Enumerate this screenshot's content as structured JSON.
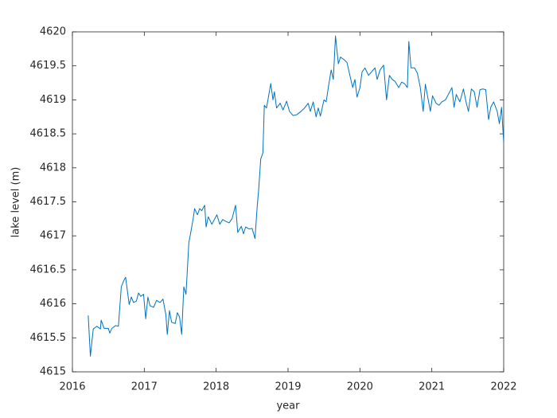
{
  "chart_data": {
    "type": "line",
    "xlabel": "year",
    "ylabel": "lake level (m)",
    "xlim": [
      2016,
      2022
    ],
    "xticks": [
      2016,
      2017,
      2018,
      2019,
      2020,
      2021,
      2022
    ],
    "ylim": [
      4615,
      4620
    ],
    "yticks": [
      4615,
      4615.5,
      4616,
      4616.5,
      4617,
      4617.5,
      4618,
      4618.5,
      4619,
      4619.5,
      4620
    ],
    "grid": false,
    "series": [
      {
        "name": "lake level",
        "color": "#0072bd",
        "x": [
          2016.22,
          2016.25,
          2016.29,
          2016.34,
          2016.39,
          2016.4,
          2016.44,
          2016.5,
          2016.52,
          2016.55,
          2016.6,
          2016.64,
          2016.68,
          2016.71,
          2016.74,
          2016.79,
          2016.82,
          2016.85,
          2016.89,
          2016.92,
          2016.95,
          2016.99,
          2017.02,
          2017.05,
          2017.08,
          2017.13,
          2017.17,
          2017.22,
          2017.26,
          2017.3,
          2017.32,
          2017.35,
          2017.38,
          2017.43,
          2017.46,
          2017.49,
          2017.52,
          2017.55,
          2017.58,
          2017.62,
          2017.65,
          2017.68,
          2017.7,
          2017.74,
          2017.77,
          2017.8,
          2017.84,
          2017.86,
          2017.89,
          2017.94,
          2017.98,
          2018.01,
          2018.05,
          2018.09,
          2018.14,
          2018.18,
          2018.22,
          2018.27,
          2018.3,
          2018.35,
          2018.38,
          2018.41,
          2018.46,
          2018.5,
          2018.54,
          2018.57,
          2018.59,
          2018.62,
          2018.65,
          2018.67,
          2018.7,
          2018.73,
          2018.76,
          2018.79,
          2018.81,
          2018.84,
          2018.89,
          2018.93,
          2018.98,
          2019.02,
          2019.07,
          2019.12,
          2019.18,
          2019.23,
          2019.28,
          2019.31,
          2019.35,
          2019.39,
          2019.42,
          2019.45,
          2019.5,
          2019.53,
          2019.56,
          2019.6,
          2019.63,
          2019.66,
          2019.7,
          2019.73,
          2019.78,
          2019.82,
          2019.86,
          2019.9,
          2019.93,
          2019.96,
          2020.0,
          2020.03,
          2020.07,
          2020.12,
          2020.16,
          2020.21,
          2020.24,
          2020.28,
          2020.33,
          2020.37,
          2020.41,
          2020.45,
          2020.49,
          2020.54,
          2020.58,
          2020.62,
          2020.66,
          2020.68,
          2020.71,
          2020.76,
          2020.8,
          2020.84,
          2020.88,
          2020.91,
          2020.94,
          2020.98,
          2021.01,
          2021.06,
          2021.1,
          2021.14,
          2021.19,
          2021.23,
          2021.28,
          2021.31,
          2021.34,
          2021.39,
          2021.44,
          2021.48,
          2021.51,
          2021.55,
          2021.59,
          2021.63,
          2021.67,
          2021.71,
          2021.75,
          2021.79,
          2021.82,
          2021.86,
          2021.91,
          2021.94,
          2021.97,
          2022.0
        ],
        "values": [
          4615.83,
          4615.23,
          4615.63,
          4615.67,
          4615.63,
          4615.76,
          4615.64,
          4615.64,
          4615.57,
          4615.64,
          4615.68,
          4615.67,
          4616.25,
          4616.33,
          4616.39,
          4615.99,
          4616.1,
          4616.02,
          4616.04,
          4616.16,
          4616.11,
          4616.14,
          4615.78,
          4616.1,
          4615.97,
          4615.95,
          4616.05,
          4616.02,
          4616.07,
          4615.84,
          4615.55,
          4615.9,
          4615.73,
          4615.71,
          4615.87,
          4615.81,
          4615.55,
          4616.25,
          4616.14,
          4616.9,
          4617.07,
          4617.25,
          4617.4,
          4617.31,
          4617.4,
          4617.37,
          4617.45,
          4617.13,
          4617.28,
          4617.17,
          4617.25,
          4617.31,
          4617.17,
          4617.24,
          4617.21,
          4617.19,
          4617.25,
          4617.45,
          4617.05,
          4617.14,
          4617.03,
          4617.13,
          4617.1,
          4617.11,
          4616.96,
          4617.42,
          4617.66,
          4618.13,
          4618.22,
          4618.92,
          4618.88,
          4619.06,
          4619.24,
          4619.0,
          4619.12,
          4618.88,
          4618.95,
          4618.85,
          4618.98,
          4618.83,
          4618.77,
          4618.78,
          4618.83,
          4618.88,
          4618.95,
          4618.83,
          4618.97,
          4618.75,
          4618.88,
          4618.76,
          4619.0,
          4618.97,
          4619.18,
          4619.44,
          4619.3,
          4619.94,
          4619.53,
          4619.63,
          4619.59,
          4619.55,
          4619.36,
          4619.18,
          4619.3,
          4619.04,
          4619.18,
          4619.41,
          4619.47,
          4619.36,
          4619.41,
          4619.47,
          4619.3,
          4619.44,
          4619.51,
          4619.0,
          4619.36,
          4619.3,
          4619.27,
          4619.18,
          4619.26,
          4619.24,
          4619.18,
          4619.86,
          4619.47,
          4619.47,
          4619.39,
          4619.18,
          4618.83,
          4619.23,
          4619.06,
          4618.83,
          4619.06,
          4618.95,
          4618.92,
          4618.97,
          4619.0,
          4619.08,
          4619.18,
          4618.89,
          4619.08,
          4618.97,
          4619.16,
          4618.95,
          4618.83,
          4619.16,
          4619.12,
          4618.89,
          4619.15,
          4619.16,
          4619.15,
          4618.71,
          4618.89,
          4618.97,
          4618.83,
          4618.65,
          4618.89,
          4618.38
        ]
      }
    ]
  }
}
